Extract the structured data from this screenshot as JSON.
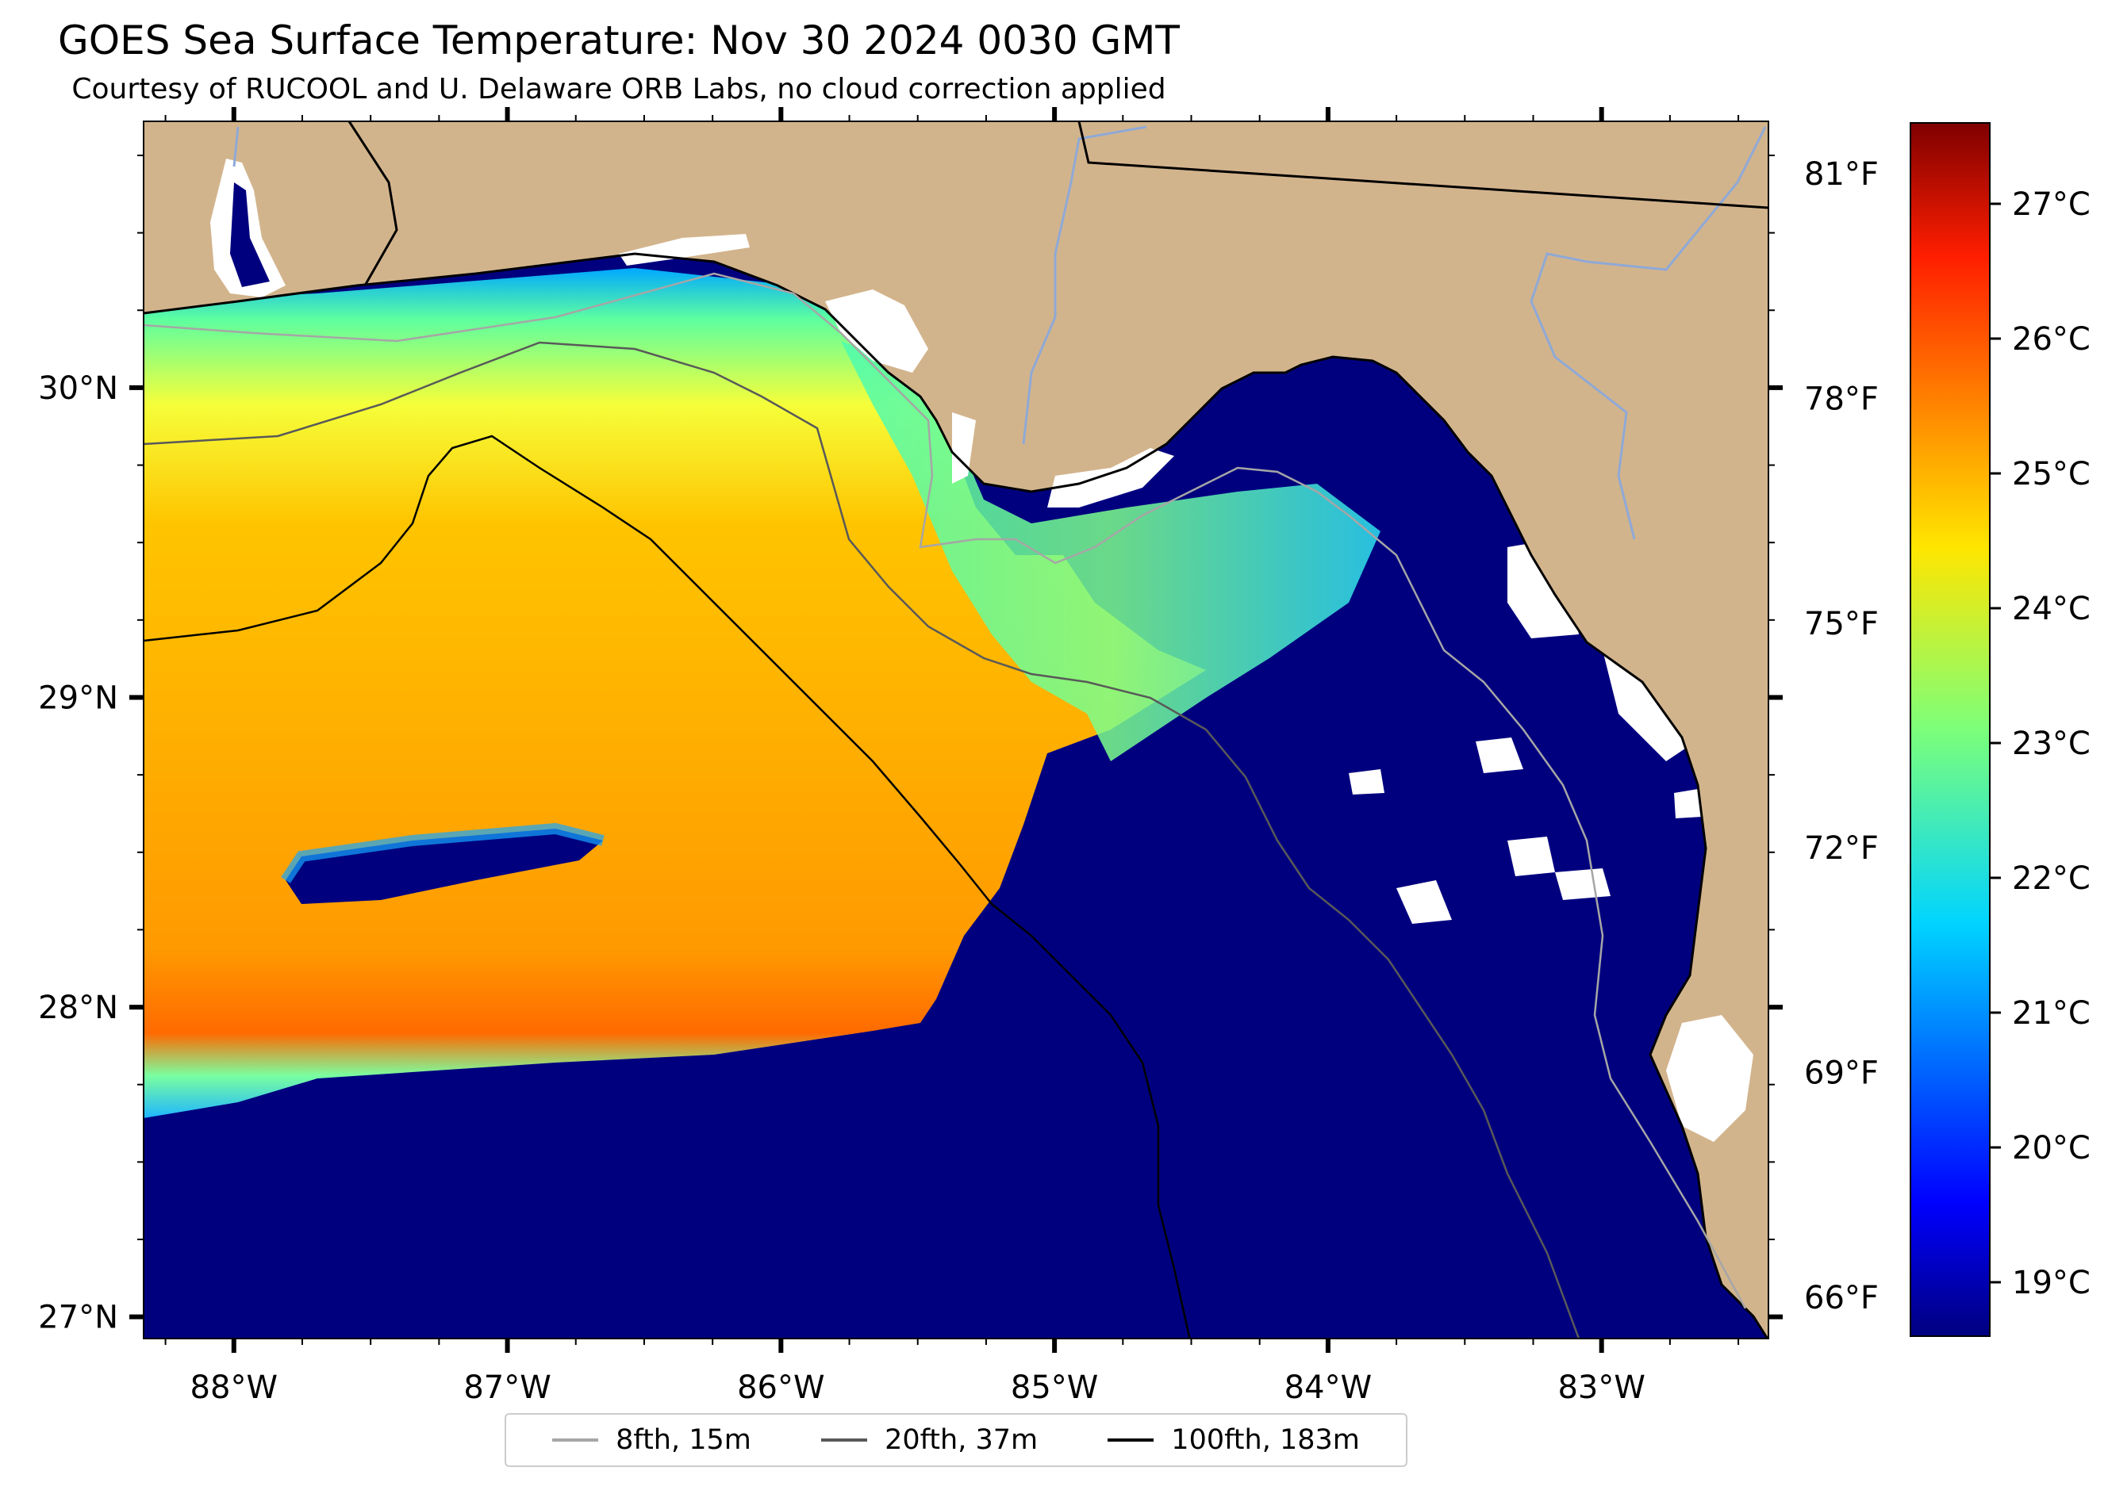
{
  "title": "GOES Sea Surface Temperature: Nov 30 2024 0030 GMT",
  "subtitle": "Courtesy of RUCOOL and U. Delaware ORB Labs, no cloud correction applied",
  "axes": {
    "lon_ticks": [
      {
        "value": -88,
        "label": "88°W"
      },
      {
        "value": -87,
        "label": "87°W"
      },
      {
        "value": -86,
        "label": "86°W"
      },
      {
        "value": -85,
        "label": "85°W"
      },
      {
        "value": -84,
        "label": "84°W"
      },
      {
        "value": -83,
        "label": "83°W"
      }
    ],
    "lat_ticks": [
      {
        "value": 30,
        "label": "30°N"
      },
      {
        "value": 29,
        "label": "29°N"
      },
      {
        "value": 28,
        "label": "28°N"
      },
      {
        "value": 27,
        "label": "27°N"
      }
    ],
    "lon_range": [
      -88.33,
      -82.39
    ],
    "lat_range": [
      26.93,
      30.86
    ],
    "fahrenheit_ticks": [
      {
        "value": 81,
        "label": "81°F"
      },
      {
        "value": 78,
        "label": "78°F"
      },
      {
        "value": 75,
        "label": "75°F"
      },
      {
        "value": 72,
        "label": "72°F"
      },
      {
        "value": 69,
        "label": "69°F"
      },
      {
        "value": 66,
        "label": "66°F"
      }
    ]
  },
  "colorbar": {
    "celsius_ticks": [
      {
        "value": 27,
        "label": "27°C"
      },
      {
        "value": 26,
        "label": "26°C"
      },
      {
        "value": 25,
        "label": "25°C"
      },
      {
        "value": 24,
        "label": "24°C"
      },
      {
        "value": 23,
        "label": "23°C"
      },
      {
        "value": 22,
        "label": "22°C"
      },
      {
        "value": 21,
        "label": "21°C"
      },
      {
        "value": 20,
        "label": "20°C"
      },
      {
        "value": 19,
        "label": "19°C"
      }
    ],
    "range_c": [
      18.6,
      27.6
    ],
    "colormap": "jet"
  },
  "legend": [
    {
      "label": "8fth, 15m",
      "color": "#a6a6a6"
    },
    {
      "label": "20fth, 37m",
      "color": "#595959"
    },
    {
      "label": "100fth, 183m",
      "color": "#000000"
    }
  ],
  "colors": {
    "land": "#d2b48c",
    "cold_water": "#00007f",
    "cloud": "#ffffff",
    "river": "#8fa9d6"
  }
}
